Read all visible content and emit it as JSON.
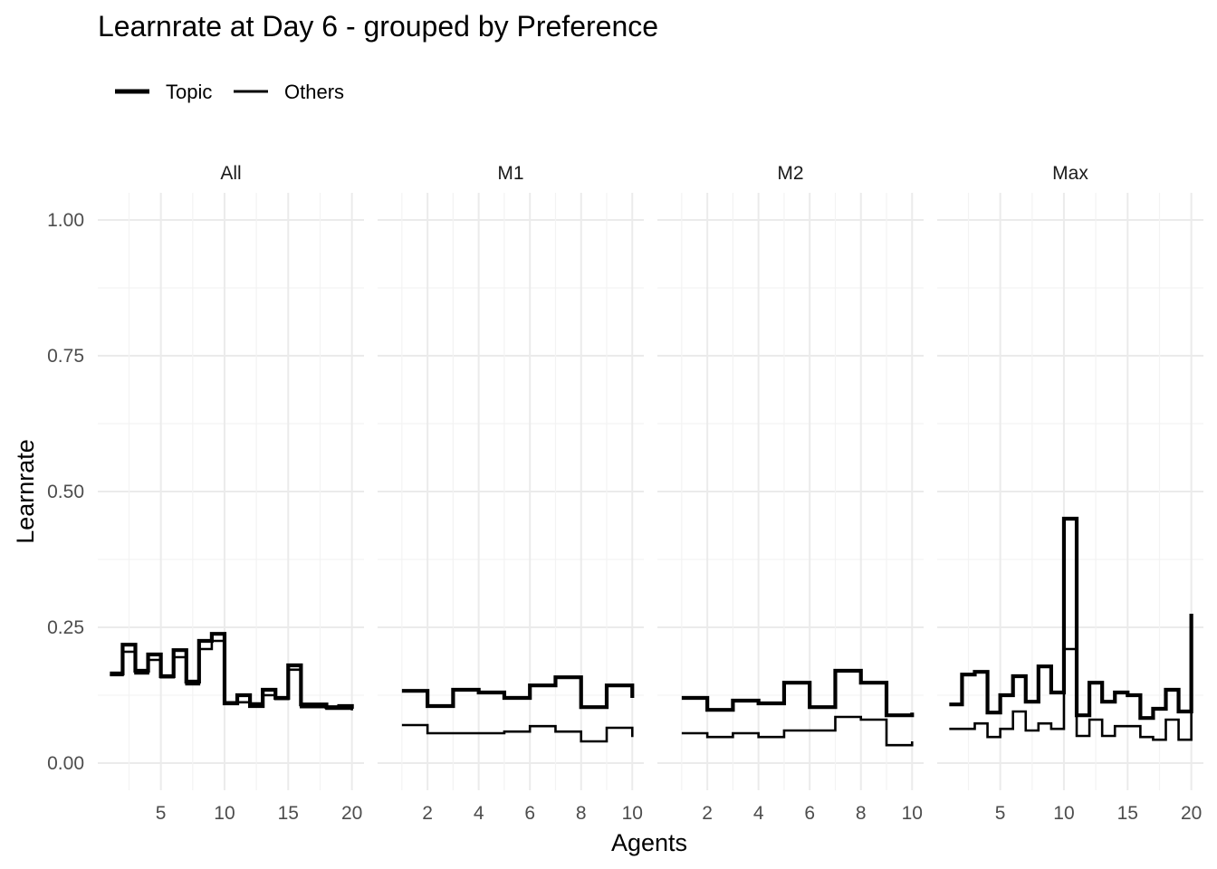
{
  "chart_data": {
    "type": "line",
    "subtype": "step",
    "title": "Learnrate at Day 6 - grouped by Preference",
    "xlabel": "Agents",
    "ylabel": "Learnrate",
    "ylim": [
      -0.05,
      1.05
    ],
    "y_ticks": [
      0,
      0.25,
      0.5,
      0.75,
      1.0
    ],
    "y_tick_labels": [
      "0.00",
      "0.25",
      "0.50",
      "0.75",
      "1.00"
    ],
    "grid": true,
    "legend": {
      "position": "top-left",
      "entries": [
        "Topic",
        "Others"
      ]
    },
    "facets": [
      {
        "label": "All",
        "xlim": [
          0.05,
          20.95
        ],
        "x_ticks": [
          5,
          10,
          15,
          20
        ],
        "x": [
          1,
          2,
          3,
          4,
          5,
          6,
          7,
          8,
          9,
          10,
          11,
          12,
          13,
          14,
          15,
          16,
          17,
          18,
          19,
          20
        ],
        "series": [
          {
            "name": "Topic",
            "values": [
              0.165,
              0.218,
              0.17,
              0.2,
              0.16,
              0.208,
              0.15,
              0.225,
              0.238,
              0.11,
              0.125,
              0.105,
              0.135,
              0.12,
              0.18,
              0.108,
              0.108,
              0.103,
              0.105,
              0.1
            ]
          },
          {
            "name": "Others",
            "values": [
              0.162,
              0.205,
              0.165,
              0.19,
              0.158,
              0.195,
              0.145,
              0.21,
              0.225,
              0.112,
              0.112,
              0.11,
              0.125,
              0.118,
              0.172,
              0.103,
              0.103,
              0.1,
              0.1,
              0.097
            ]
          }
        ]
      },
      {
        "label": "M1",
        "xlim": [
          0.05,
          10.45
        ],
        "x_ticks": [
          2,
          4,
          6,
          8,
          10
        ],
        "x": [
          1,
          2,
          3,
          4,
          5,
          6,
          7,
          8,
          9,
          10
        ],
        "series": [
          {
            "name": "Topic",
            "values": [
              0.133,
              0.105,
              0.135,
              0.13,
              0.12,
              0.143,
              0.158,
              0.103,
              0.143,
              0.12
            ]
          },
          {
            "name": "Others",
            "values": [
              0.07,
              0.055,
              0.055,
              0.055,
              0.058,
              0.068,
              0.058,
              0.04,
              0.065,
              0.048
            ]
          }
        ]
      },
      {
        "label": "M2",
        "xlim": [
          0.05,
          10.45
        ],
        "x_ticks": [
          2,
          4,
          6,
          8,
          10
        ],
        "x": [
          1,
          2,
          3,
          4,
          5,
          6,
          7,
          8,
          9,
          10
        ],
        "series": [
          {
            "name": "Topic",
            "values": [
              0.12,
              0.098,
              0.115,
              0.11,
              0.148,
              0.103,
              0.17,
              0.148,
              0.088,
              0.093
            ]
          },
          {
            "name": "Others",
            "values": [
              0.055,
              0.048,
              0.055,
              0.048,
              0.06,
              0.06,
              0.085,
              0.08,
              0.033,
              0.04
            ]
          }
        ]
      },
      {
        "label": "Max",
        "xlim": [
          0.05,
          20.95
        ],
        "x_ticks": [
          5,
          10,
          15,
          20
        ],
        "x": [
          1,
          2,
          3,
          4,
          5,
          6,
          7,
          8,
          9,
          10,
          11,
          12,
          13,
          14,
          15,
          16,
          17,
          18,
          19,
          20
        ],
        "series": [
          {
            "name": "Topic",
            "values": [
              0.108,
              0.163,
              0.168,
              0.093,
              0.125,
              0.16,
              0.113,
              0.178,
              0.13,
              0.45,
              0.088,
              0.148,
              0.113,
              0.13,
              0.125,
              0.083,
              0.1,
              0.135,
              0.095,
              0.275
            ]
          },
          {
            "name": "Others",
            "values": [
              0.063,
              0.063,
              0.073,
              0.048,
              0.063,
              0.095,
              0.06,
              0.073,
              0.063,
              0.21,
              0.05,
              0.08,
              0.05,
              0.068,
              0.068,
              0.048,
              0.043,
              0.08,
              0.043,
              0.11
            ]
          }
        ]
      }
    ]
  }
}
